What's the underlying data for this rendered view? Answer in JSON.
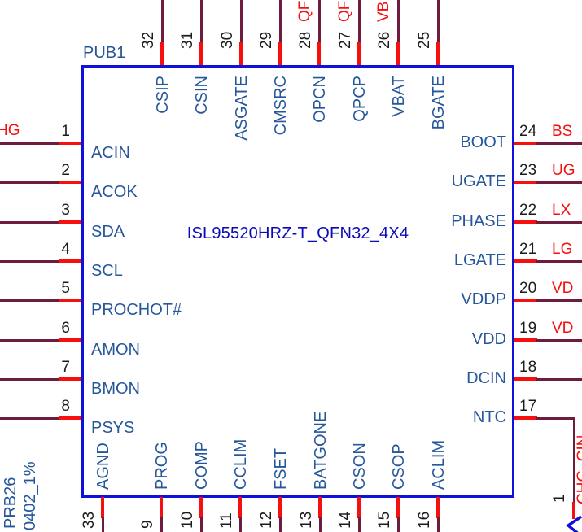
{
  "component": {
    "refdes": "PUB1",
    "part_name": "ISL95520HRZ-T_QFN32_4X4"
  },
  "pins": {
    "left": [
      {
        "num": "1",
        "name": "ACIN",
        "net": "HG"
      },
      {
        "num": "2",
        "name": "ACOK"
      },
      {
        "num": "3",
        "name": "SDA"
      },
      {
        "num": "4",
        "name": "SCL"
      },
      {
        "num": "5",
        "name": "PROCHOT#"
      },
      {
        "num": "6",
        "name": "AMON"
      },
      {
        "num": "7",
        "name": "BMON"
      },
      {
        "num": "8",
        "name": "PSYS"
      }
    ],
    "top": [
      {
        "num": "32",
        "name": "CSIP"
      },
      {
        "num": "31",
        "name": "CSIN"
      },
      {
        "num": "30",
        "name": "ASGATE"
      },
      {
        "num": "29",
        "name": "CMSRC"
      },
      {
        "num": "28",
        "name": "OPCN",
        "net": "QF"
      },
      {
        "num": "27",
        "name": "QPCP",
        "net": "QF"
      },
      {
        "num": "26",
        "name": "VBAT",
        "net": "VB"
      },
      {
        "num": "25",
        "name": "BGATE"
      }
    ],
    "right": [
      {
        "num": "24",
        "name": "BOOT",
        "net": "BS"
      },
      {
        "num": "23",
        "name": "UGATE",
        "net": "UG"
      },
      {
        "num": "22",
        "name": "PHASE",
        "net": "LX"
      },
      {
        "num": "21",
        "name": "LGATE",
        "net": "LG"
      },
      {
        "num": "20",
        "name": "VDDP",
        "net": "VD"
      },
      {
        "num": "19",
        "name": "VDD",
        "net": "VD"
      },
      {
        "num": "18",
        "name": "DCIN"
      },
      {
        "num": "17",
        "name": "NTC",
        "net": "CHG_CIN"
      }
    ],
    "bottom": [
      {
        "num": "33",
        "name": "AGND"
      },
      {
        "num": "9",
        "name": "PROG"
      },
      {
        "num": "10",
        "name": "COMP"
      },
      {
        "num": "11",
        "name": "CCLIM"
      },
      {
        "num": "12",
        "name": "FSET"
      },
      {
        "num": "13",
        "name": "BATGONE"
      },
      {
        "num": "14",
        "name": "CSON"
      },
      {
        "num": "15",
        "name": "CSOP"
      },
      {
        "num": "16",
        "name": "ACLIM"
      }
    ]
  },
  "other_component": {
    "refdes": "PRB26",
    "value": "0402_1%",
    "pin_num": "1"
  },
  "colors": {
    "body-blue": "#1010dd",
    "wire-maroon": "#6e1c3e",
    "stub-red": "#f50f0f",
    "net-red": "#f50f0f",
    "name-blue": "#27579b",
    "part-blue": "#0a0ab8",
    "num-black": "#1c1c1c"
  }
}
